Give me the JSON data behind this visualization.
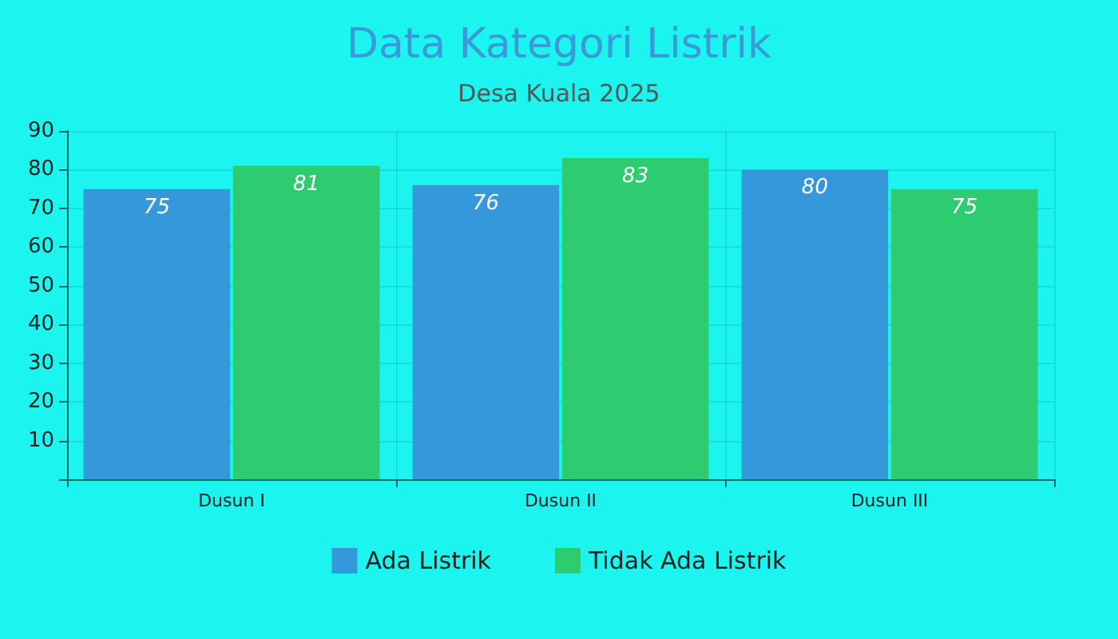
{
  "chart_data": {
    "type": "bar",
    "title": "Data Kategori Listrik",
    "subtitle": "Desa Kuala 2025",
    "categories": [
      "Dusun I",
      "Dusun II",
      "Dusun III"
    ],
    "series": [
      {
        "name": "Ada Listrik",
        "color": "#3498db",
        "values": [
          75,
          76,
          80
        ]
      },
      {
        "name": "Tidak Ada Listrik",
        "color": "#2ecc71",
        "values": [
          81,
          83,
          75
        ]
      }
    ],
    "ylim": [
      0,
      90
    ],
    "yticks": [
      {
        "value": 0,
        "label": null
      },
      10,
      20,
      30,
      40,
      50,
      60,
      70,
      80,
      90
    ],
    "grid": true,
    "legend": "bottom",
    "data_labels": true
  }
}
